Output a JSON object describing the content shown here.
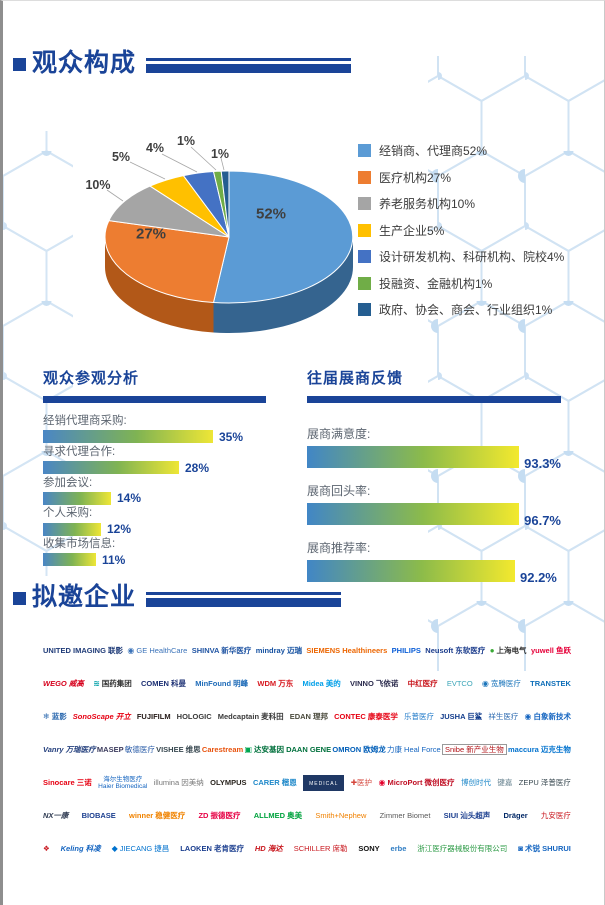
{
  "sections": {
    "audience_title": "观众构成",
    "invited_title": "拟邀企业"
  },
  "colors": {
    "accent_navy": "#1A4498",
    "bar_gradient": [
      "#4A86C5",
      "#7FB353",
      "#EEE636"
    ]
  },
  "chart_data": [
    {
      "type": "pie",
      "style": "3d",
      "title": "观众构成",
      "legend_position": "right",
      "labels": [
        "经销商、代理商",
        "医疗机构",
        "养老服务机构",
        "生产企业",
        "设计研发机构、科研机构、院校",
        "投融资、金融机构",
        "政府、协会、商会、行业组织"
      ],
      "values": [
        52,
        27,
        10,
        5,
        4,
        1,
        1
      ],
      "colors": [
        "#5B9BD5",
        "#ED7D31",
        "#A5A5A5",
        "#FFC000",
        "#4472C4",
        "#70AD47",
        "#255E91"
      ],
      "legend": [
        "经销商、代理商52%",
        "医疗机构27%",
        "养老服务机构10%",
        "生产企业5%",
        "设计研发机构、科研机构、院校4%",
        "投融资、金融机构1%",
        "政府、协会、商会、行业组织1%"
      ]
    },
    {
      "type": "bar",
      "orientation": "horizontal",
      "title": "观众参观分析",
      "categories": [
        "经销代理商采购:",
        "寻求代理合作:",
        "参加会议:",
        "个人采购:",
        "收集市场信息:"
      ],
      "values": [
        35,
        28,
        14,
        12,
        11
      ],
      "unit": "%",
      "xlim": [
        0,
        35
      ],
      "grid": false
    },
    {
      "type": "bar",
      "orientation": "horizontal",
      "title": "往届展商反馈",
      "categories": [
        "展商满意度:",
        "展商回头率:",
        "展商推荐率:"
      ],
      "values": [
        93.3,
        96.7,
        92.2
      ],
      "unit": "%",
      "xlim": [
        0,
        100
      ],
      "grid": false
    }
  ],
  "logos": {
    "rows": [
      [
        {
          "text": "UNITED IMAGING 联影",
          "color": "#1F3B78",
          "bold": true
        },
        {
          "text": "GE HealthCare",
          "color": "#3B73B9",
          "prefix": "◉",
          "prefix_color": "#3B73B9"
        },
        {
          "text": "SHINVA 新华医疗",
          "color": "#2155A3",
          "bold": true
        },
        {
          "text": "mindray 迈瑞",
          "color": "#1450A0",
          "bold": true
        },
        {
          "text": "SIEMENS Healthineers",
          "color": "#EC6602",
          "bold": true
        },
        {
          "text": "PHILIPS",
          "color": "#0B5ED7",
          "bold": true
        },
        {
          "text": "Neusoft 东软医疗",
          "color": "#1B3C8C",
          "bold": true
        },
        {
          "text": "上海电气",
          "color": "#333333",
          "bold": true,
          "prefix": "●",
          "prefix_color": "#39A935"
        },
        {
          "text": "yuwell 鱼跃",
          "color": "#E60039",
          "bold": true
        }
      ],
      [
        {
          "text": "WEGO 威高",
          "color": "#D6001C",
          "bold": true,
          "italic": true
        },
        {
          "text": "国药集团",
          "color": "#333333",
          "bold": true,
          "prefix": "≋",
          "prefix_color": "#00A0A8"
        },
        {
          "text": "COMEN 科曼",
          "color": "#1B2F73",
          "bold": true
        },
        {
          "text": "MinFound 明峰",
          "color": "#1E6BB8",
          "bold": true
        },
        {
          "text": "WDM 万东",
          "color": "#D71920",
          "bold": true
        },
        {
          "text": "Midea 美的",
          "color": "#009FE8",
          "bold": true
        },
        {
          "text": "VINNO 飞依诺",
          "color": "#2B2B4D",
          "bold": true
        },
        {
          "text": "中红医疗",
          "color": "#C8161D",
          "bold": true
        },
        {
          "text": "EVTCO",
          "color": "#3BA5B8"
        },
        {
          "text": "宽腾医疗",
          "color": "#1B75BB",
          "prefix": "◉",
          "prefix_color": "#1B75BB"
        },
        {
          "text": "TRANSTEK",
          "color": "#0E6EB8",
          "bold": true
        }
      ],
      [
        {
          "text": "蓝影",
          "color": "#2E6BB0",
          "bold": true,
          "prefix": "❄",
          "prefix_color": "#2E6BB0"
        },
        {
          "text": "SonoScape 开立",
          "color": "#E60012",
          "bold": true,
          "italic": true
        },
        {
          "text": "FUJIFILM",
          "color": "#231815",
          "bold": true
        },
        {
          "text": "HOLOGIC",
          "color": "#3A3A3A",
          "bold": true
        },
        {
          "text": "Medcaptain 麦科田",
          "color": "#3A3A3A",
          "bold": true
        },
        {
          "text": "EDAN 理邦",
          "color": "#4A4A3C",
          "bold": true
        },
        {
          "text": "CONTEC 康泰医学",
          "color": "#E60012",
          "bold": true
        },
        {
          "text": "乐普医疗",
          "color": "#1E78C8"
        },
        {
          "text": "JUSHA 巨鲨",
          "color": "#123C8C",
          "bold": true
        },
        {
          "text": "祥生医疗",
          "color": "#2E6BB0"
        },
        {
          "text": "白象新技术",
          "color": "#1565C0",
          "bold": true,
          "prefix": "◉",
          "prefix_color": "#1565C0"
        }
      ],
      [
        {
          "text": "Vanry 万瑞医疗",
          "color": "#26417E",
          "bold": true,
          "italic": true
        },
        {
          "text": "MASEP",
          "color": "#3A3A5C",
          "bold": true
        },
        {
          "text": "敏德医疗",
          "color": "#2458A6"
        },
        {
          "text": "VISHEE 维思",
          "color": "#37474F",
          "bold": true
        },
        {
          "text": "Carestream",
          "color": "#E8530E",
          "bold": true
        },
        {
          "text": "达安基因 DAAN GENE",
          "color": "#00703C",
          "bold": true,
          "prefix": "▣",
          "prefix_color": "#00A651"
        },
        {
          "text": "OMRON 欧姆龙",
          "color": "#005EB8",
          "bold": true
        },
        {
          "text": "力康 Heal Force",
          "color": "#1565C0"
        },
        {
          "text": "Snibe 新产业生物",
          "color": "#B01116",
          "box": true
        },
        {
          "text": "maccura 迈克生物",
          "color": "#0072CE",
          "bold": true
        }
      ],
      [
        {
          "text": "Sinocare 三诺",
          "color": "#E60012",
          "bold": true
        },
        {
          "text": "海尔生物医疗",
          "color": "#1565C0",
          "line2": "Haier Biomedical"
        },
        {
          "text": "illumina 因美纳",
          "color": "#777777"
        },
        {
          "text": "OLYMPUS",
          "color": "#2B2620",
          "bold": true
        },
        {
          "text": "CARER 楷恩",
          "color": "#1E88C9",
          "bold": true
        },
        {
          "text": "MEDICAL",
          "color": "#FFFFFF",
          "navybox": true
        },
        {
          "text": "✚医护",
          "color": "#D4453B"
        },
        {
          "text": "MicroPort 微创医疗",
          "color": "#C01025",
          "bold": true,
          "prefix": "◉",
          "prefix_color": "#E4002B"
        },
        {
          "text": "博创时代",
          "color": "#1E88C9"
        },
        {
          "text": "键嘉",
          "color": "#607D8B"
        },
        {
          "text": "ZEPU 泽普医疗",
          "color": "#37474F"
        }
      ],
      [
        {
          "text": "NX一康",
          "color": "#2F3B52",
          "bold": true,
          "italic": true
        },
        {
          "text": "BIOBASE",
          "color": "#1B3E8F",
          "bold": true
        },
        {
          "text": "winner 稳健医疗",
          "color": "#F08300",
          "bold": true
        },
        {
          "text": "ZD 振德医疗",
          "color": "#E60044",
          "bold": true
        },
        {
          "text": "ALLMED 奥美",
          "color": "#00A33E",
          "bold": true
        },
        {
          "text": "Smith+Nephew",
          "color": "#F08100"
        },
        {
          "text": "Zimmer Biomet",
          "color": "#5A5A5A"
        },
        {
          "text": "SIUI 汕头超声",
          "color": "#1B3E8F",
          "bold": true
        },
        {
          "text": "Dräger",
          "color": "#002766",
          "bold": true
        },
        {
          "text": "九安医疗",
          "color": "#C8161D"
        }
      ],
      [
        {
          "text": "❖",
          "color": "#C8161D"
        },
        {
          "text": "Keling 科凌",
          "color": "#1565C0",
          "bold": true,
          "italic": true
        },
        {
          "text": "JIECANG 捷昌",
          "color": "#0072CE",
          "prefix": "◆",
          "prefix_color": "#0072CE"
        },
        {
          "text": "LAOKEN 老肯医疗",
          "color": "#1B3E8F",
          "bold": true
        },
        {
          "text": "HD 海达",
          "color": "#C8161D",
          "bold": true,
          "italic": true
        },
        {
          "text": "SCHILLER 席勒",
          "color": "#C8161D"
        },
        {
          "text": "SONY",
          "color": "#111111",
          "bold": true
        },
        {
          "text": "erbe",
          "color": "#2E7CC3",
          "bold": true
        },
        {
          "text": "浙江医疗器械股份有限公司",
          "color": "#2E9B47"
        },
        {
          "text": "术锐 SHURUI",
          "color": "#1565C0",
          "bold": true,
          "prefix": "◙",
          "prefix_color": "#1565C0"
        }
      ]
    ]
  }
}
